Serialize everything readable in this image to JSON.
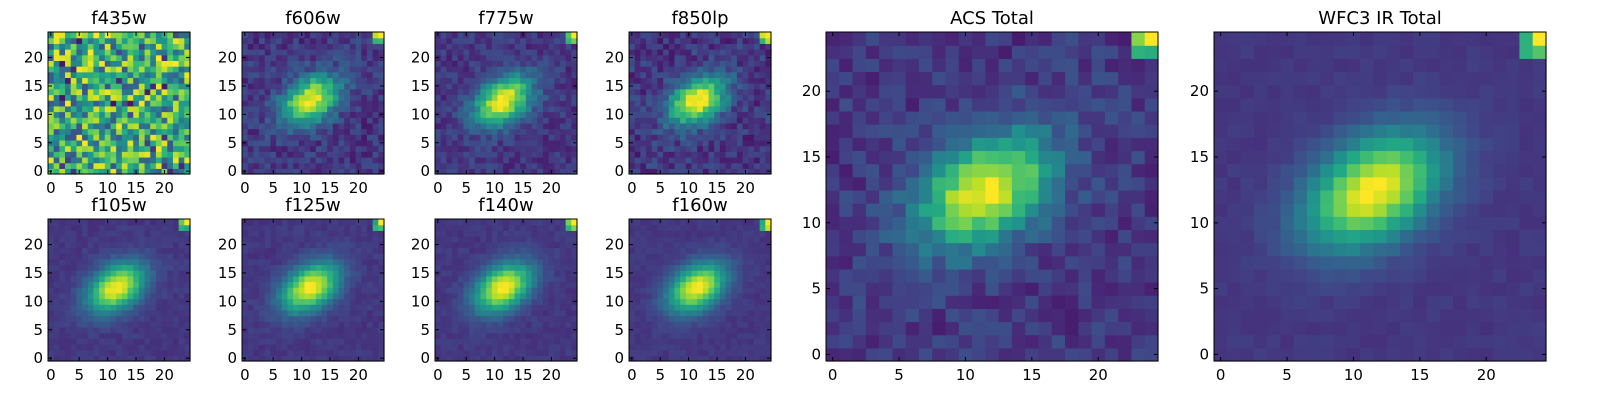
{
  "chart_data": [
    {
      "type": "heatmap",
      "title": "f435w",
      "colormap": "viridis",
      "x_range": [
        -0.5,
        24.5
      ],
      "y_range": [
        -0.5,
        24.5
      ],
      "xticks": [
        0,
        5,
        10,
        15,
        20
      ],
      "yticks": [
        0,
        5,
        10,
        15,
        20
      ],
      "peak": {
        "x": 12,
        "y": 12
      },
      "shape": "noise",
      "noise_level": 1.0
    },
    {
      "type": "heatmap",
      "title": "f606w",
      "colormap": "viridis",
      "x_range": [
        -0.5,
        24.5
      ],
      "y_range": [
        -0.5,
        24.5
      ],
      "xticks": [
        0,
        5,
        10,
        15,
        20
      ],
      "yticks": [
        0,
        5,
        10,
        15,
        20
      ],
      "peak": {
        "x": 11.5,
        "y": 12.5
      },
      "shape": "elliptical-blob",
      "noise_level": 0.35
    },
    {
      "type": "heatmap",
      "title": "f775w",
      "colormap": "viridis",
      "x_range": [
        -0.5,
        24.5
      ],
      "y_range": [
        -0.5,
        24.5
      ],
      "xticks": [
        0,
        5,
        10,
        15,
        20
      ],
      "yticks": [
        0,
        5,
        10,
        15,
        20
      ],
      "peak": {
        "x": 11.5,
        "y": 12.5
      },
      "shape": "elliptical-blob",
      "noise_level": 0.3
    },
    {
      "type": "heatmap",
      "title": "f850lp",
      "colormap": "viridis",
      "x_range": [
        -0.5,
        24.5
      ],
      "y_range": [
        -0.5,
        24.5
      ],
      "xticks": [
        0,
        5,
        10,
        15,
        20
      ],
      "yticks": [
        0,
        5,
        10,
        15,
        20
      ],
      "peak": {
        "x": 11.5,
        "y": 12.5
      },
      "shape": "elliptical-blob",
      "noise_level": 0.38
    },
    {
      "type": "heatmap",
      "title": "f105w",
      "colormap": "viridis",
      "x_range": [
        -0.5,
        24.5
      ],
      "y_range": [
        -0.5,
        24.5
      ],
      "xticks": [
        0,
        5,
        10,
        15,
        20
      ],
      "yticks": [
        0,
        5,
        10,
        15,
        20
      ],
      "peak": {
        "x": 11.5,
        "y": 12.5
      },
      "shape": "elliptical-blob",
      "noise_level": 0.12
    },
    {
      "type": "heatmap",
      "title": "f125w",
      "colormap": "viridis",
      "x_range": [
        -0.5,
        24.5
      ],
      "y_range": [
        -0.5,
        24.5
      ],
      "xticks": [
        0,
        5,
        10,
        15,
        20
      ],
      "yticks": [
        0,
        5,
        10,
        15,
        20
      ],
      "peak": {
        "x": 11.5,
        "y": 12.5
      },
      "shape": "elliptical-blob",
      "noise_level": 0.12
    },
    {
      "type": "heatmap",
      "title": "f140w",
      "colormap": "viridis",
      "x_range": [
        -0.5,
        24.5
      ],
      "y_range": [
        -0.5,
        24.5
      ],
      "xticks": [
        0,
        5,
        10,
        15,
        20
      ],
      "yticks": [
        0,
        5,
        10,
        15,
        20
      ],
      "peak": {
        "x": 11.5,
        "y": 12.5
      },
      "shape": "elliptical-blob",
      "noise_level": 0.12
    },
    {
      "type": "heatmap",
      "title": "f160w",
      "colormap": "viridis",
      "x_range": [
        -0.5,
        24.5
      ],
      "y_range": [
        -0.5,
        24.5
      ],
      "xticks": [
        0,
        5,
        10,
        15,
        20
      ],
      "yticks": [
        0,
        5,
        10,
        15,
        20
      ],
      "peak": {
        "x": 11.5,
        "y": 12.5
      },
      "shape": "elliptical-blob",
      "noise_level": 0.1
    },
    {
      "type": "heatmap",
      "title": "ACS Total",
      "colormap": "viridis",
      "x_range": [
        -0.5,
        24.5
      ],
      "y_range": [
        -0.5,
        24.5
      ],
      "xticks": [
        0,
        5,
        10,
        15,
        20
      ],
      "yticks": [
        0,
        5,
        10,
        15,
        20
      ],
      "peak": {
        "x": 11.5,
        "y": 12.5
      },
      "shape": "elliptical-blob",
      "noise_level": 0.3
    },
    {
      "type": "heatmap",
      "title": "WFC3 IR Total",
      "colormap": "viridis",
      "x_range": [
        -0.5,
        24.5
      ],
      "y_range": [
        -0.5,
        24.5
      ],
      "xticks": [
        0,
        5,
        10,
        15,
        20
      ],
      "yticks": [
        0,
        5,
        10,
        15,
        20
      ],
      "peak": {
        "x": 11.5,
        "y": 12.5
      },
      "shape": "elliptical-blob",
      "noise_level": 0.08
    }
  ]
}
